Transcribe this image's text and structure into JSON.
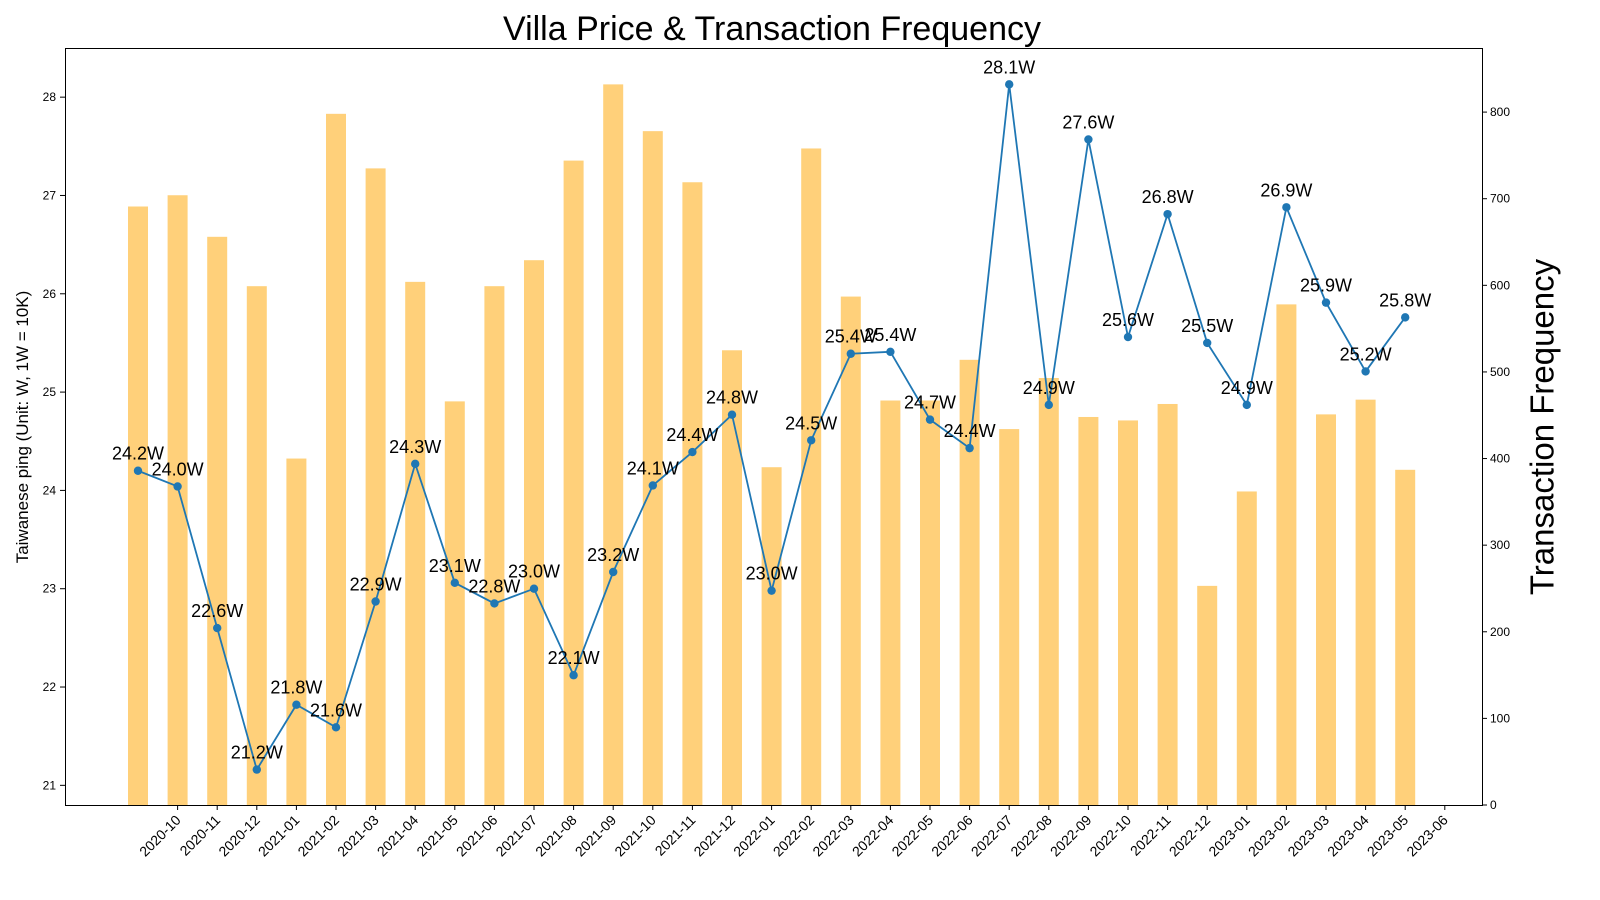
{
  "chart_data": {
    "type": "bar+line",
    "title": "Villa Price & Transaction Frequency",
    "ylabel_left": "Taiwanese ping (Unit: W, 1W = 10K)",
    "ylabel_right": "Transaction Frequency",
    "x_tick_labels": [
      "2020-10",
      "2020-11",
      "2020-12",
      "2021-01",
      "2021-02",
      "2021-03",
      "2021-04",
      "2021-05",
      "2021-06",
      "2021-07",
      "2021-08",
      "2021-09",
      "2021-10",
      "2021-11",
      "2021-12",
      "2022-01",
      "2022-02",
      "2022-03",
      "2022-04",
      "2022-05",
      "2022-06",
      "2022-07",
      "2022-08",
      "2022-09",
      "2022-10",
      "2022-11",
      "2022-12",
      "2023-01",
      "2023-02",
      "2023-03",
      "2023-04",
      "2023-05",
      "2023-06"
    ],
    "left_axis": {
      "ylim": [
        20.8,
        28.5
      ],
      "ticks": [
        21,
        22,
        23,
        24,
        25,
        26,
        27,
        28
      ]
    },
    "right_axis": {
      "ylim": [
        0,
        874
      ],
      "ticks": [
        0,
        100,
        200,
        300,
        400,
        500,
        600,
        700,
        800
      ]
    },
    "bar_series": {
      "axis": "right",
      "color": "#FFC04D",
      "values": [
        691,
        704,
        656,
        599,
        400,
        798,
        735,
        604,
        466,
        599,
        629,
        744,
        832,
        778,
        719,
        525,
        390,
        758,
        587,
        467,
        467,
        514,
        434,
        493,
        448,
        444,
        463,
        253,
        362,
        578,
        451,
        468,
        387
      ]
    },
    "line_series": {
      "axis": "left",
      "color": "#1f77b4",
      "values": [
        24.2,
        24.04,
        22.6,
        21.16,
        21.82,
        21.59,
        22.87,
        24.27,
        23.06,
        22.85,
        23.0,
        22.12,
        23.17,
        24.05,
        24.39,
        24.77,
        22.98,
        24.51,
        25.39,
        25.41,
        24.72,
        24.43,
        28.13,
        24.87,
        27.57,
        25.56,
        26.81,
        25.5,
        24.87,
        26.88,
        25.91,
        25.21,
        25.76
      ],
      "labels": [
        "24.2W",
        "24.0W",
        "22.6W",
        "21.2W",
        "21.8W",
        "21.6W",
        "22.9W",
        "24.3W",
        "23.1W",
        "22.8W",
        "23.0W",
        "22.1W",
        "23.2W",
        "24.1W",
        "24.4W",
        "24.8W",
        "23.0W",
        "24.5W",
        "25.4W",
        "25.4W",
        "24.7W",
        "24.4W",
        "28.1W",
        "24.9W",
        "27.6W",
        "25.6W",
        "26.8W",
        "25.5W",
        "24.9W",
        "26.9W",
        "25.9W",
        "25.2W",
        "25.8W"
      ]
    },
    "grid": false,
    "legend": "none"
  }
}
